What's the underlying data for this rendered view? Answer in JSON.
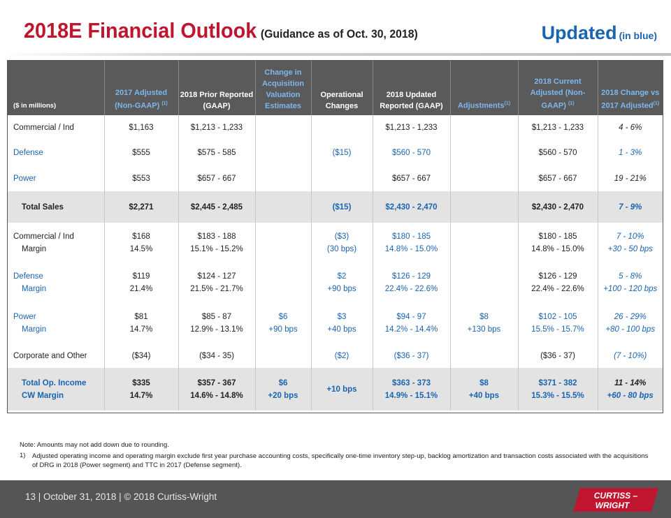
{
  "title": {
    "main": "2018E Financial Outlook",
    "sub": "(Guidance as of Oct. 30, 2018)",
    "updated": "Updated",
    "updated_note": "(in blue)"
  },
  "colors": {
    "brand_red": "#c0152f",
    "blue": "#1a64b0",
    "header_bg": "#5a5a5a",
    "footer_bg": "#555555"
  },
  "table": {
    "headers": [
      {
        "text": "($ in millions)",
        "sup": ""
      },
      {
        "text": "2017 Adjusted (Non-GAAP)",
        "sup": "(1)"
      },
      {
        "text": "2018 Prior Reported (GAAP)",
        "sup": ""
      },
      {
        "text": "Change in Acquisition Valuation Estimates",
        "sup": ""
      },
      {
        "text": "Operational Changes",
        "sup": ""
      },
      {
        "text": "2018 Updated Reported (GAAP)",
        "sup": ""
      },
      {
        "text": "Adjustments",
        "sup": "(1)"
      },
      {
        "text": "2018 Current Adjusted (Non-GAAP)",
        "sup": "(1)"
      },
      {
        "text": "2018 Change vs 2017 Adjusted",
        "sup": "(1)"
      }
    ],
    "rows": [
      {
        "label": "Commercial / Ind",
        "c1": "$1,163",
        "c2": "$1,213 - 1,233",
        "c3": "",
        "c4": "",
        "c5": "$1,213 - 1,233",
        "c6": "",
        "c7": "$1,213 - 1,233",
        "c8": "4 - 6%"
      },
      {
        "label": "Defense",
        "c1": "$555",
        "c2": "$575 - 585",
        "c3": "",
        "c4": "($15)",
        "c5": "$560 - 570",
        "c6": "",
        "c7": "$560 - 570",
        "c8": "1 - 3%"
      },
      {
        "label": "Power",
        "c1": "$553",
        "c2": "$657 - 667",
        "c3": "",
        "c4": "",
        "c5": "$657 - 667",
        "c6": "",
        "c7": "$657 - 667",
        "c8": "19 - 21%"
      },
      {
        "label": "Total Sales",
        "c1": "$2,271",
        "c2": "$2,445 - 2,485",
        "c3": "",
        "c4": "($15)",
        "c5": "$2,430 - 2,470",
        "c6": "",
        "c7": "$2,430 - 2,470",
        "c8": "7 - 9%"
      },
      {
        "label": "Commercial / Ind",
        "label2": "Margin",
        "c1": "$168",
        "c1b": "14.5%",
        "c2": "$183 - 188",
        "c2b": "15.1% - 15.2%",
        "c3": "",
        "c3b": "",
        "c4": "($3)",
        "c4b": "(30 bps)",
        "c5": "$180 - 185",
        "c5b": "14.8% - 15.0%",
        "c6": "",
        "c6b": "",
        "c7": "$180 - 185",
        "c7b": "14.8% - 15.0%",
        "c8": "7 - 10%",
        "c8b": "+30 - 50 bps"
      },
      {
        "label": "Defense",
        "label2": "Margin",
        "c1": "$119",
        "c1b": "21.4%",
        "c2": "$124 - 127",
        "c2b": "21.5% - 21.7%",
        "c3": "",
        "c3b": "",
        "c4": "$2",
        "c4b": "+90 bps",
        "c5": "$126 - 129",
        "c5b": "22.4% - 22.6%",
        "c6": "",
        "c6b": "",
        "c7": "$126 - 129",
        "c7b": "22.4% - 22.6%",
        "c8": "5 - 8%",
        "c8b": "+100 - 120 bps"
      },
      {
        "label": "Power",
        "label2": "Margin",
        "c1": "$81",
        "c1b": "14.7%",
        "c2": "$85 - 87",
        "c2b": "12.9% - 13.1%",
        "c3": "$6",
        "c3b": "+90 bps",
        "c4": "$3",
        "c4b": "+40 bps",
        "c5": "$94 - 97",
        "c5b": "14.2% - 14.4%",
        "c6": "$8",
        "c6b": "+130 bps",
        "c7": "$102 - 105",
        "c7b": "15.5% - 15.7%",
        "c8": "26 - 29%",
        "c8b": "+80 - 100 bps"
      },
      {
        "label": "Corporate and Other",
        "c1": "($34)",
        "c2": "($34 - 35)",
        "c3": "",
        "c4": "($2)",
        "c5": "($36 - 37)",
        "c6": "",
        "c7": "($36 - 37)",
        "c8": "(7 - 10%)"
      },
      {
        "label": "Total Op. Income",
        "label2": "CW Margin",
        "c1": "$335",
        "c1b": "14.7%",
        "c2": "$357 - 367",
        "c2b": "14.6% - 14.8%",
        "c3": "$6",
        "c3b": "+20 bps",
        "c4": "+10 bps",
        "c4b": "",
        "c5": "$363 - 373",
        "c5b": "14.9% - 15.1%",
        "c6": "$8",
        "c6b": "+40 bps",
        "c7": "$371 - 382",
        "c7b": "15.3% - 15.5%",
        "c8": "11 - 14%",
        "c8b": "+60 - 80 bps"
      }
    ]
  },
  "notes": {
    "note": "Note: Amounts may not add down due to rounding.",
    "fn_num": "1)",
    "fn_text": "Adjusted operating income and operating margin exclude first year purchase accounting costs, specifically one-time inventory step-up, backlog amortization and transaction costs associated with the acquisitions of DRG in 2018 (Power segment) and TTC in 2017 (Defense segment)."
  },
  "footer": {
    "text": "13  | October 31, 2018  |  © 2018 Curtiss-Wright",
    "logo_text": "CURTISS - WRIGHT"
  }
}
